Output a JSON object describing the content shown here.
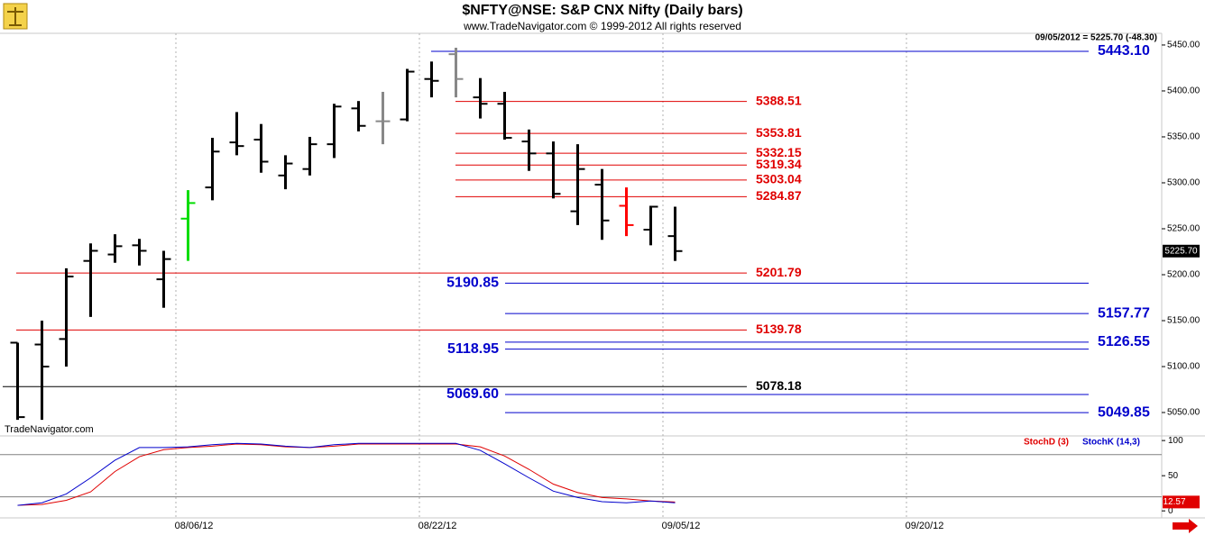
{
  "chart_data": {
    "type": "ohlc",
    "title": "$NFTY@NSE:  S&P CNX Nifty  (Daily bars)",
    "subtitle": "www.TradeNavigator.com © 1999-2012 All rights reserved",
    "info": "09/05/2012 = 5225.70 (-48.30)",
    "watermark": "TradeNavigator.com",
    "categories": [
      null,
      null,
      null,
      null,
      null,
      null,
      null,
      "08/06/12",
      null,
      null,
      null,
      null,
      null,
      null,
      null,
      null,
      null,
      "08/22/12",
      null,
      null,
      null,
      null,
      null,
      null,
      null,
      null,
      null,
      "09/05/12",
      null,
      null,
      null,
      null,
      null,
      null,
      null,
      null,
      null,
      "09/20/12"
    ],
    "open": [
      5126,
      5124,
      5130,
      5215,
      5222,
      5232,
      5195,
      5261,
      5295,
      5344,
      5347,
      5308,
      5315,
      5342,
      5381,
      5367,
      5369,
      5413,
      5440,
      5393,
      5386,
      5345,
      5332,
      5269,
      5298,
      5275,
      5249,
      5242,
      null,
      null,
      null,
      null,
      null,
      null,
      null,
      null,
      null,
      null
    ],
    "high": [
      5126,
      5150,
      5207,
      5234,
      5244,
      5239,
      5226,
      5292,
      5349,
      5377,
      5364,
      5330,
      5350,
      5386,
      5389,
      5399,
      5424,
      5432,
      5447,
      5414,
      5399,
      5358,
      5345,
      5342,
      5315,
      5295,
      5275,
      5274,
      null,
      null,
      null,
      null,
      null,
      null,
      null,
      null,
      null,
      null
    ],
    "low": [
      5042,
      5042,
      5100,
      5154,
      5213,
      5210,
      5164,
      5215,
      5281,
      5330,
      5311,
      5293,
      5308,
      5327,
      5356,
      5342,
      5367,
      5393,
      5393,
      5370,
      5347,
      5313,
      5283,
      5254,
      5238,
      5242,
      5232,
      5215,
      null,
      null,
      null,
      null,
      null,
      null,
      null,
      null,
      null,
      null
    ],
    "close": [
      5045,
      5100,
      5198,
      5226,
      5231,
      5226,
      5217,
      5278,
      5334,
      5340,
      5323,
      5321,
      5342,
      5383,
      5362,
      5367,
      5421,
      5411,
      5413,
      5386,
      5349,
      5332,
      5288,
      5315,
      5259,
      5254,
      5274,
      5225.7,
      null,
      null,
      null,
      null,
      null,
      null,
      null,
      null,
      null,
      null
    ],
    "bar_colors": [
      "#000000",
      "#000000",
      "#000000",
      "#000000",
      "#000000",
      "#000000",
      "#000000",
      "#00dd00",
      "#000000",
      "#000000",
      "#000000",
      "#000000",
      "#000000",
      "#000000",
      "#000000",
      "#888888",
      "#000000",
      "#000000",
      "#888888",
      "#000000",
      "#000000",
      "#000000",
      "#000000",
      "#000000",
      "#000000",
      "#ff0000",
      "#000000",
      "#000000",
      null,
      null,
      null,
      null,
      null,
      null,
      null,
      null,
      null,
      null
    ],
    "last_label": "5225.70",
    "ylim": [
      5025.5,
      5462.7
    ],
    "yticks": [
      {
        "value": 5050,
        "label": "5050.00"
      },
      {
        "value": 5100,
        "label": "5100.00"
      },
      {
        "value": 5150,
        "label": "5150.00"
      },
      {
        "value": 5200,
        "label": "5200.00"
      },
      {
        "value": 5250,
        "label": "5250.00"
      },
      {
        "value": 5300,
        "label": "5300.00"
      },
      {
        "value": 5350,
        "label": "5350.00"
      },
      {
        "value": 5400,
        "label": "5400.00"
      },
      {
        "value": 5450,
        "label": "5450.00"
      }
    ],
    "levels": [
      {
        "value": 5443.1,
        "label": "5443.10",
        "color": "#0000cc"
      },
      {
        "value": 5388.51,
        "color": "#e00000"
      },
      {
        "value": 5353.81,
        "color": "#e00000"
      },
      {
        "value": 5332.15,
        "color": "#e00000"
      },
      {
        "value": 5319.34,
        "color": "#e00000"
      },
      {
        "value": 5303.04,
        "color": "#e00000"
      },
      {
        "value": 5284.87,
        "color": "#e00000"
      },
      {
        "value": 5201.79,
        "color": "#e00000"
      },
      {
        "value": 5190.85,
        "color": "#0000cc"
      },
      {
        "value": 5157.77,
        "color": "#0000cc"
      },
      {
        "value": 5139.78,
        "color": "#e00000"
      },
      {
        "value": 5126.55,
        "color": "#0000cc"
      },
      {
        "value": 5118.95,
        "color": "#0000cc"
      },
      {
        "value": 5078.18,
        "color": "#000000"
      },
      {
        "value": 5069.6,
        "label": "5069.60",
        "color": "#0000cc"
      },
      {
        "value": 5049.85,
        "color": "#0000cc"
      }
    ],
    "stochastic": {
      "type": "line",
      "ylim": [
        -10,
        104
      ],
      "yticks": [
        0,
        50,
        100
      ],
      "hlines": [
        20,
        80
      ],
      "series": [
        {
          "name": "StochD (3)",
          "color": "#e00000",
          "values": [
            8,
            9,
            15,
            27,
            56,
            77,
            87,
            90,
            92,
            95,
            94,
            91,
            90,
            92,
            95,
            95,
            95,
            95,
            95,
            91,
            78,
            59,
            38,
            26,
            19,
            17,
            14,
            12.57,
            null,
            null,
            null,
            null,
            null,
            null,
            null,
            null,
            null,
            null
          ]
        },
        {
          "name": "StochK (14,3)",
          "color": "#0000cc",
          "values": [
            7.7,
            11.5,
            24,
            47,
            72,
            90,
            90,
            91,
            94,
            96,
            95,
            92,
            90,
            94,
            96,
            96,
            96,
            96,
            96,
            86,
            67,
            47,
            28,
            19,
            13,
            11.5,
            14,
            11.5,
            null,
            null,
            null,
            null,
            null,
            null,
            null,
            null,
            null,
            null
          ]
        }
      ]
    }
  }
}
